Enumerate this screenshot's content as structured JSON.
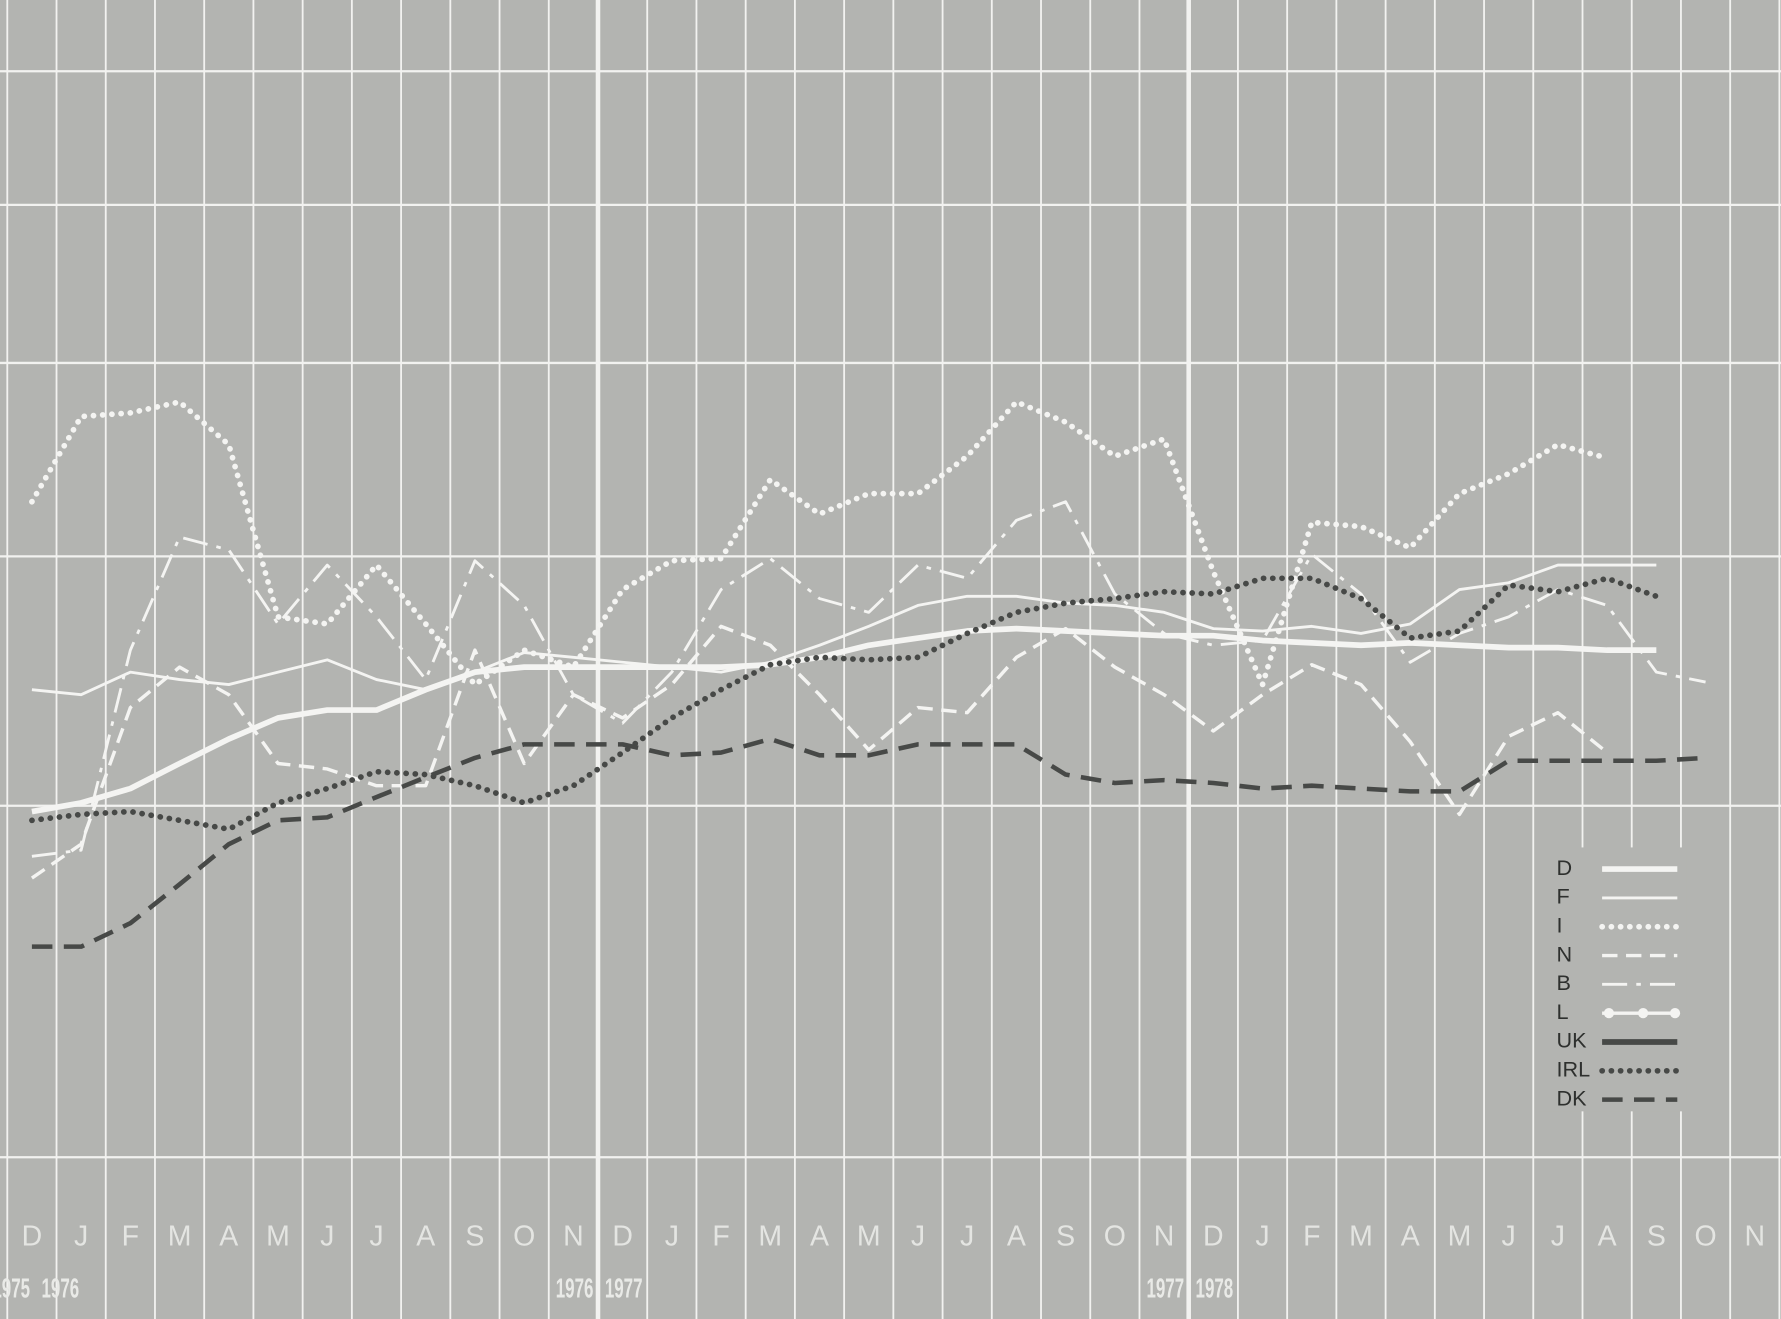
{
  "chart_data": {
    "type": "line",
    "log_scale": true,
    "grid": true,
    "legend": "lower right",
    "background": "#b3b4b1",
    "grid_color": "#f2f2f0",
    "categories": [
      "D",
      "J",
      "F",
      "M",
      "A",
      "M",
      "J",
      "J",
      "A",
      "S",
      "O",
      "N",
      "D",
      "J",
      "F",
      "M",
      "A",
      "M",
      "J",
      "J",
      "A",
      "S",
      "O",
      "N",
      "D",
      "J",
      "F",
      "M",
      "A",
      "M",
      "J",
      "J",
      "A",
      "S",
      "O",
      "N"
    ],
    "year_labels": [
      "1975",
      "1976",
      "1976",
      "1977",
      "1977",
      "1978"
    ],
    "ylim": [
      1.9,
      7.6
    ],
    "yticks": [
      2,
      3,
      4,
      5,
      6,
      7
    ],
    "series": [
      {
        "name": "D",
        "color": "#f4f4f2",
        "width": 5,
        "style": "solid",
        "values": [
          2.98,
          3.01,
          3.06,
          3.15,
          3.24,
          3.32,
          3.35,
          3.35,
          3.43,
          3.5,
          3.52,
          3.52,
          3.52,
          3.52,
          3.52,
          3.53,
          3.56,
          3.61,
          3.64,
          3.67,
          3.68,
          3.67,
          3.66,
          3.65,
          3.65,
          3.63,
          3.62,
          3.61,
          3.62,
          3.61,
          3.6,
          3.6,
          3.59,
          3.59,
          null,
          null
        ]
      },
      {
        "name": "F",
        "color": "#f4f4f2",
        "width": 2.5,
        "style": "solid",
        "values": [
          3.43,
          3.41,
          3.5,
          3.47,
          3.45,
          3.5,
          3.55,
          3.47,
          3.43,
          3.5,
          3.58,
          3.56,
          3.54,
          3.52,
          3.5,
          3.54,
          3.61,
          3.69,
          3.78,
          3.82,
          3.82,
          3.79,
          3.78,
          3.75,
          3.68,
          3.67,
          3.69,
          3.66,
          3.7,
          3.85,
          3.88,
          3.96,
          3.96,
          3.96,
          null,
          null
        ]
      },
      {
        "name": "I",
        "color": "#f4f4f2",
        "width": 5,
        "style": "dotted",
        "values": [
          4.26,
          4.7,
          4.72,
          4.78,
          4.55,
          3.73,
          3.7,
          3.96,
          3.7,
          3.45,
          3.59,
          3.52,
          3.85,
          3.98,
          3.99,
          4.37,
          4.2,
          4.3,
          4.3,
          4.49,
          4.78,
          4.67,
          4.49,
          4.58,
          3.93,
          3.45,
          4.16,
          4.14,
          4.04,
          4.3,
          4.4,
          4.55,
          4.48,
          null,
          null,
          null
        ]
      },
      {
        "name": "N",
        "color": "#f4f4f2",
        "width": 3,
        "style": "dashed",
        "values": [
          2.76,
          2.87,
          3.36,
          3.52,
          3.41,
          3.15,
          3.13,
          3.07,
          3.07,
          3.59,
          3.15,
          3.41,
          3.32,
          3.45,
          3.69,
          3.61,
          3.41,
          3.2,
          3.36,
          3.34,
          3.56,
          3.68,
          3.52,
          3.41,
          3.27,
          3.41,
          3.53,
          3.45,
          3.23,
          2.97,
          3.25,
          3.34,
          3.19,
          null,
          null,
          null
        ]
      },
      {
        "name": "B",
        "color": "#f4f4f2",
        "width": 2.5,
        "style": "dashdot",
        "values": [
          2.83,
          2.85,
          3.59,
          4.09,
          4.03,
          3.7,
          3.96,
          3.73,
          3.47,
          3.98,
          3.78,
          3.41,
          3.3,
          3.5,
          3.85,
          3.99,
          3.81,
          3.75,
          3.96,
          3.9,
          4.17,
          4.26,
          3.83,
          3.66,
          3.61,
          3.63,
          4.01,
          3.83,
          3.54,
          3.66,
          3.73,
          3.85,
          3.78,
          3.5,
          3.46,
          null
        ]
      },
      {
        "name": "L",
        "color": "#f4f4f2",
        "width": 3,
        "style": "marker",
        "values": [
          null,
          null,
          null,
          null,
          null,
          null,
          null,
          null,
          null,
          null,
          null,
          null,
          null,
          null,
          null,
          null,
          null,
          null,
          null,
          null,
          null,
          null,
          null,
          null,
          null,
          null,
          null,
          null,
          null,
          null,
          null,
          null,
          null,
          null,
          null,
          null
        ]
      },
      {
        "name": "UK",
        "color": "#474947",
        "width": 5,
        "style": "solid",
        "values": [
          null,
          null,
          null,
          null,
          null,
          null,
          null,
          null,
          null,
          null,
          null,
          null,
          null,
          null,
          null,
          null,
          null,
          null,
          null,
          null,
          null,
          null,
          null,
          null,
          null,
          null,
          null,
          null,
          null,
          null,
          null,
          null,
          null,
          null,
          null,
          null
        ]
      },
      {
        "name": "IRL",
        "color": "#474947",
        "width": 5,
        "style": "dotted",
        "values": [
          2.95,
          2.97,
          2.98,
          2.95,
          2.92,
          3.01,
          3.06,
          3.12,
          3.11,
          3.07,
          3.01,
          3.07,
          3.19,
          3.32,
          3.43,
          3.53,
          3.56,
          3.55,
          3.56,
          3.66,
          3.75,
          3.79,
          3.81,
          3.84,
          3.83,
          3.9,
          3.9,
          3.81,
          3.64,
          3.67,
          3.87,
          3.84,
          3.9,
          3.82,
          null,
          null
        ]
      },
      {
        "name": "DK",
        "color": "#474947",
        "width": 4,
        "style": "dashed",
        "values": [
          2.55,
          2.55,
          2.62,
          2.74,
          2.87,
          2.95,
          2.96,
          3.03,
          3.1,
          3.17,
          3.22,
          3.22,
          3.22,
          3.18,
          3.19,
          3.24,
          3.18,
          3.18,
          3.22,
          3.22,
          3.22,
          3.11,
          3.08,
          3.09,
          3.08,
          3.06,
          3.07,
          3.06,
          3.05,
          3.05,
          3.16,
          3.16,
          3.16,
          3.16,
          3.17,
          null
        ]
      }
    ]
  }
}
